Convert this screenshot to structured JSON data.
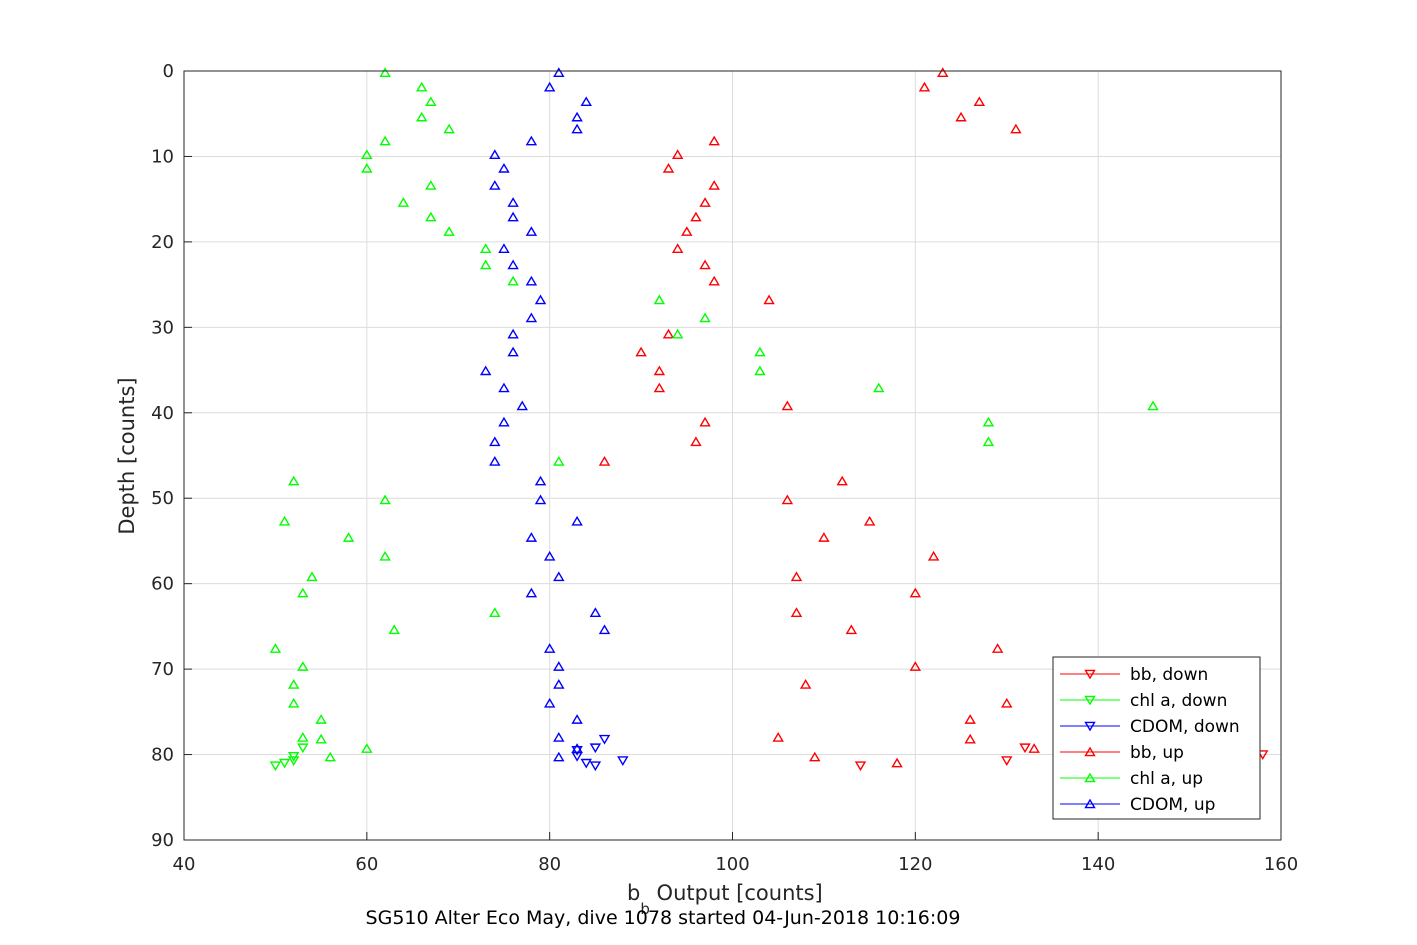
{
  "chart_data": {
    "type": "scatter",
    "xlabel_main": "b",
    "xlabel_sub": "b",
    "xlabel_rest": " Output [counts]",
    "ylabel": "Depth [counts]",
    "caption": "SG510 Alter Eco May, dive 1078 started 04-Jun-2018 10:16:09",
    "xlim": [
      40,
      160
    ],
    "ylim": [
      0,
      90
    ],
    "y_reversed": true,
    "grid": true,
    "xticks": [
      "40",
      "60",
      "80",
      "100",
      "120",
      "140",
      "160"
    ],
    "yticks": [
      "0",
      "10",
      "20",
      "30",
      "40",
      "50",
      "60",
      "70",
      "80",
      "90"
    ],
    "legend_position": "bottom-right",
    "series": [
      {
        "name": "bb, down",
        "color": "#ff0000",
        "marker": "triangle-down",
        "points": [
          [
            114,
            81.3
          ],
          [
            130,
            80.7
          ],
          [
            132,
            79.2
          ],
          [
            158,
            80.0
          ]
        ]
      },
      {
        "name": "chl a, down",
        "color": "#00ff00",
        "marker": "triangle-down",
        "points": [
          [
            50,
            81.3
          ],
          [
            51,
            81.0
          ],
          [
            52,
            80.7
          ],
          [
            53,
            79.2
          ],
          [
            52,
            80.2
          ]
        ]
      },
      {
        "name": "CDOM, down",
        "color": "#0000ff",
        "marker": "triangle-down",
        "points": [
          [
            83,
            79.5
          ],
          [
            84,
            81.0
          ],
          [
            85,
            81.3
          ],
          [
            86,
            78.2
          ],
          [
            88,
            80.7
          ],
          [
            85,
            79.2
          ],
          [
            83,
            80.2
          ]
        ]
      },
      {
        "name": "bb, up",
        "color": "#ff0000",
        "marker": "triangle-up",
        "points": [
          [
            123,
            0.2
          ],
          [
            121,
            1.9
          ],
          [
            127,
            3.6
          ],
          [
            125,
            5.4
          ],
          [
            131,
            6.8
          ],
          [
            98,
            8.2
          ],
          [
            94,
            9.8
          ],
          [
            93,
            11.4
          ],
          [
            98,
            13.4
          ],
          [
            97,
            15.4
          ],
          [
            96,
            17.1
          ],
          [
            95,
            18.8
          ],
          [
            94,
            20.8
          ],
          [
            97,
            22.7
          ],
          [
            98,
            24.6
          ],
          [
            104,
            26.8
          ],
          [
            93,
            30.8
          ],
          [
            90,
            32.9
          ],
          [
            92,
            35.1
          ],
          [
            92,
            37.1
          ],
          [
            106,
            39.2
          ],
          [
            97,
            41.1
          ],
          [
            96,
            43.4
          ],
          [
            86,
            45.7
          ],
          [
            112,
            48.0
          ],
          [
            106,
            50.2
          ],
          [
            115,
            52.7
          ],
          [
            110,
            54.6
          ],
          [
            122,
            56.8
          ],
          [
            107,
            59.2
          ],
          [
            120,
            61.1
          ],
          [
            107,
            63.4
          ],
          [
            113,
            65.4
          ],
          [
            129,
            67.6
          ],
          [
            120,
            69.7
          ],
          [
            108,
            71.8
          ],
          [
            130,
            74.0
          ],
          [
            126,
            75.9
          ],
          [
            126,
            78.2
          ],
          [
            105,
            78.0
          ],
          [
            133,
            79.3
          ],
          [
            109,
            80.3
          ],
          [
            118,
            81.0
          ]
        ]
      },
      {
        "name": "chl a, up",
        "color": "#00ff00",
        "marker": "triangle-up",
        "points": [
          [
            62,
            0.2
          ],
          [
            66,
            1.9
          ],
          [
            67,
            3.6
          ],
          [
            66,
            5.4
          ],
          [
            69,
            6.8
          ],
          [
            62,
            8.2
          ],
          [
            60,
            9.8
          ],
          [
            60,
            11.4
          ],
          [
            67,
            13.4
          ],
          [
            64,
            15.4
          ],
          [
            67,
            17.1
          ],
          [
            69,
            18.8
          ],
          [
            73,
            20.8
          ],
          [
            73,
            22.7
          ],
          [
            76,
            24.6
          ],
          [
            92,
            26.8
          ],
          [
            97,
            28.9
          ],
          [
            94,
            30.8
          ],
          [
            103,
            32.9
          ],
          [
            103,
            35.1
          ],
          [
            116,
            37.1
          ],
          [
            146,
            39.2
          ],
          [
            128,
            41.1
          ],
          [
            128,
            43.4
          ],
          [
            81,
            45.7
          ],
          [
            52,
            48.0
          ],
          [
            62,
            50.2
          ],
          [
            51,
            52.7
          ],
          [
            58,
            54.6
          ],
          [
            62,
            56.8
          ],
          [
            54,
            59.2
          ],
          [
            53,
            61.1
          ],
          [
            74,
            63.4
          ],
          [
            63,
            65.4
          ],
          [
            50,
            67.6
          ],
          [
            53,
            69.7
          ],
          [
            52,
            71.8
          ],
          [
            52,
            74.0
          ],
          [
            55,
            75.9
          ],
          [
            53,
            78.0
          ],
          [
            55,
            78.2
          ],
          [
            60,
            79.3
          ],
          [
            56,
            80.3
          ]
        ]
      },
      {
        "name": "CDOM, up",
        "color": "#0000ff",
        "marker": "triangle-up",
        "points": [
          [
            81,
            0.2
          ],
          [
            80,
            1.9
          ],
          [
            84,
            3.6
          ],
          [
            83,
            5.4
          ],
          [
            83,
            6.8
          ],
          [
            78,
            8.2
          ],
          [
            74,
            9.8
          ],
          [
            75,
            11.4
          ],
          [
            74,
            13.4
          ],
          [
            76,
            15.4
          ],
          [
            76,
            17.1
          ],
          [
            78,
            18.8
          ],
          [
            75,
            20.8
          ],
          [
            76,
            22.7
          ],
          [
            78,
            24.6
          ],
          [
            79,
            26.8
          ],
          [
            78,
            28.9
          ],
          [
            76,
            30.8
          ],
          [
            76,
            32.9
          ],
          [
            73,
            35.1
          ],
          [
            75,
            37.1
          ],
          [
            77,
            39.2
          ],
          [
            75,
            41.1
          ],
          [
            74,
            43.4
          ],
          [
            74,
            45.7
          ],
          [
            79,
            48.0
          ],
          [
            79,
            50.2
          ],
          [
            83,
            52.7
          ],
          [
            78,
            54.6
          ],
          [
            80,
            56.8
          ],
          [
            81,
            59.2
          ],
          [
            78,
            61.1
          ],
          [
            85,
            63.4
          ],
          [
            86,
            65.4
          ],
          [
            80,
            67.6
          ],
          [
            81,
            69.7
          ],
          [
            81,
            71.8
          ],
          [
            80,
            74.0
          ],
          [
            83,
            75.9
          ],
          [
            81,
            78.0
          ],
          [
            83,
            79.3
          ],
          [
            81,
            80.3
          ]
        ]
      }
    ]
  }
}
